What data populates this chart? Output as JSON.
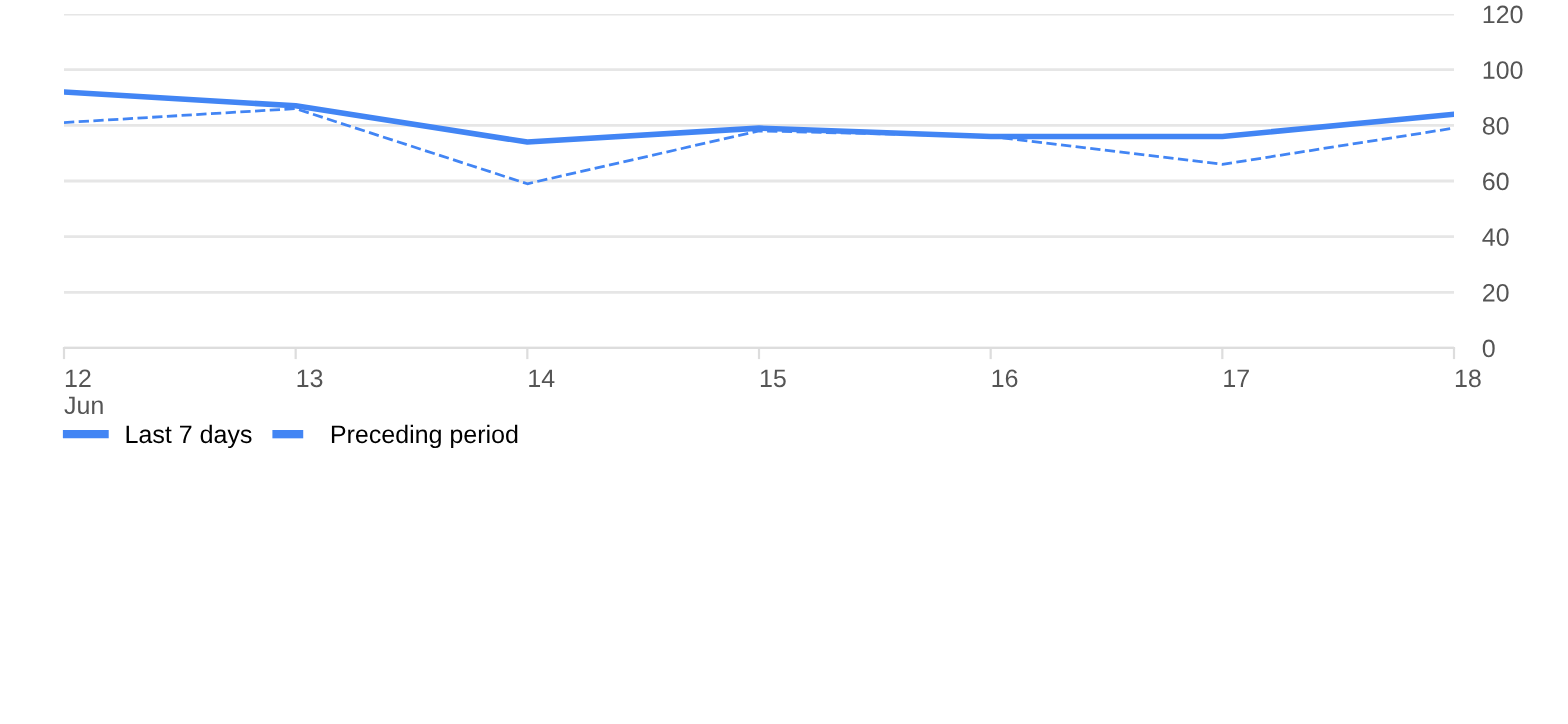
{
  "chart_data": {
    "type": "line",
    "categories": [
      "12\nJun",
      "13",
      "14",
      "15",
      "16",
      "17",
      "18"
    ],
    "series": [
      {
        "name": "Last 7 days",
        "color": "#4285f4",
        "line_style": "solid",
        "values": [
          92,
          87,
          74,
          79,
          76,
          76,
          84
        ]
      },
      {
        "name": "Preceding period",
        "color": "#4285f4",
        "line_style": "dashed",
        "values": [
          81,
          86,
          59,
          78,
          76,
          66,
          79
        ]
      }
    ],
    "ylim": [
      0,
      120
    ],
    "yticks": [
      0,
      20,
      40,
      60,
      80,
      100,
      120
    ],
    "grid": "y",
    "legend": "bottom left"
  }
}
